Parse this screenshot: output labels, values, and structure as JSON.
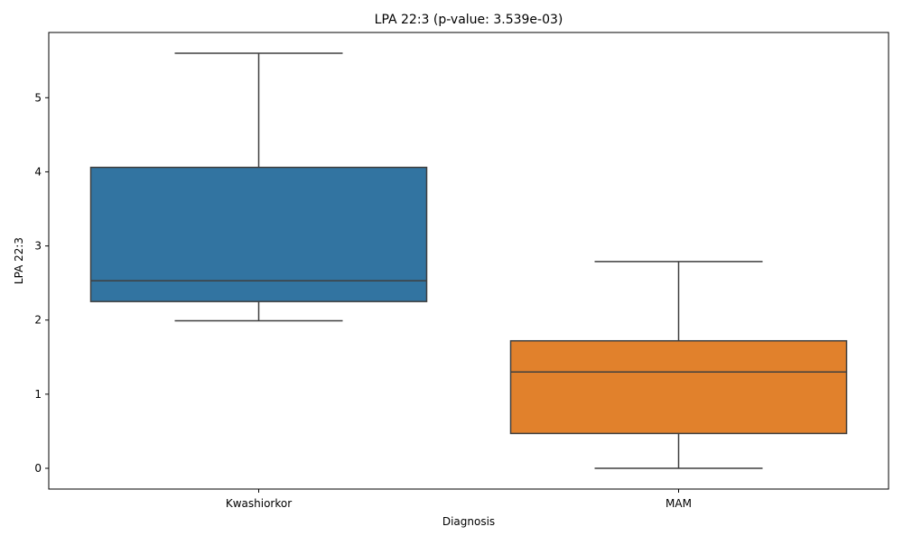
{
  "chart_data": {
    "type": "box",
    "title": "LPA 22:3 (p-value: 3.539e-03)",
    "xlabel": "Diagnosis",
    "ylabel": "LPA 22:3",
    "categories": [
      "Kwashiorkor",
      "MAM"
    ],
    "boxes": [
      {
        "category": "Kwashiorkor",
        "whisker_low": 1.99,
        "q1": 2.25,
        "median": 2.53,
        "q3": 4.06,
        "whisker_high": 5.6,
        "color": "#3274a1"
      },
      {
        "category": "MAM",
        "whisker_low": 0.0,
        "q1": 0.47,
        "median": 1.3,
        "q3": 1.72,
        "whisker_high": 2.79,
        "color": "#e1812c"
      }
    ],
    "y_ticks": [
      0,
      1,
      2,
      3,
      4,
      5
    ],
    "ylim": [
      -0.28,
      5.88
    ],
    "grid": false,
    "legend": "none"
  }
}
